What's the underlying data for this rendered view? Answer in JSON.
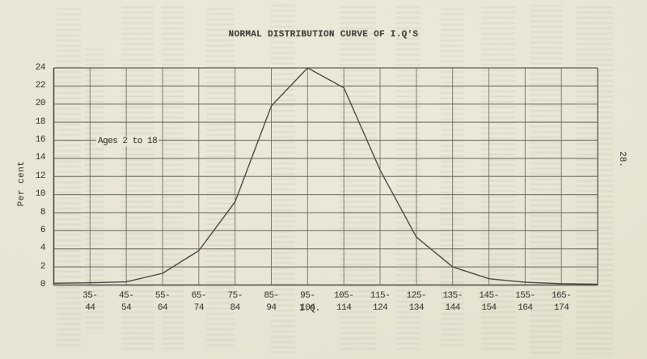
{
  "page": {
    "number": "28."
  },
  "chart_data": {
    "type": "line",
    "title": "NORMAL DISTRIBUTION CURVE OF I.Q'S",
    "annotation": "Ages 2 to 18",
    "xlabel": "I.Q.",
    "ylabel": "Per cent",
    "ylim": [
      0,
      24
    ],
    "yticks": [
      0,
      2,
      4,
      6,
      8,
      10,
      12,
      14,
      16,
      18,
      20,
      22,
      24
    ],
    "grid": true,
    "legend": "none",
    "categories": [
      {
        "line1": "35-",
        "line2": "44"
      },
      {
        "line1": "45-",
        "line2": "54"
      },
      {
        "line1": "55-",
        "line2": "64"
      },
      {
        "line1": "65-",
        "line2": "74"
      },
      {
        "line1": "75-",
        "line2": "84"
      },
      {
        "line1": "85-",
        "line2": "94"
      },
      {
        "line1": "95-",
        "line2": "104"
      },
      {
        "line1": "105-",
        "line2": "114"
      },
      {
        "line1": "115-",
        "line2": "124"
      },
      {
        "line1": "125-",
        "line2": "134"
      },
      {
        "line1": "135-",
        "line2": "144"
      },
      {
        "line1": "145-",
        "line2": "154"
      },
      {
        "line1": "155-",
        "line2": "164"
      },
      {
        "line1": "165-",
        "line2": "174"
      }
    ],
    "values": [
      0.25,
      0.35,
      1.3,
      3.8,
      9.2,
      19.8,
      24,
      21.8,
      12.7,
      5.3,
      2.0,
      0.7,
      0.3,
      0.15
    ],
    "edge_values": {
      "left": 0.2,
      "right": 0.1
    }
  }
}
